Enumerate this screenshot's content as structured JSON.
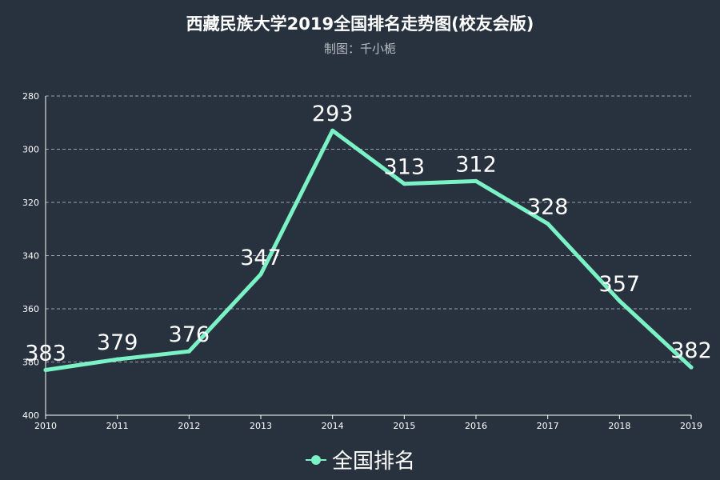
{
  "chart_data": {
    "type": "line",
    "title": "西藏民族大学2019全国排名走势图(校友会版)",
    "subtitle": "制图：千小栀",
    "categories": [
      "2010",
      "2011",
      "2012",
      "2013",
      "2014",
      "2015",
      "2016",
      "2017",
      "2018",
      "2019"
    ],
    "series": [
      {
        "name": "全国排名",
        "values": [
          383,
          379,
          376,
          347,
          293,
          313,
          312,
          328,
          357,
          382
        ]
      }
    ],
    "xlabel": "",
    "ylabel": "",
    "y_axis": {
      "min": 280,
      "max": 400,
      "step": 20,
      "inverse": true
    },
    "grid": {
      "horizontal": true,
      "style": "dashed"
    },
    "legend_position": "bottom-center",
    "data_labels": true
  },
  "colors": {
    "background": "#27323e",
    "series_line": "#7bf2c6",
    "text": "#ffffff",
    "subtitle": "#b9bec5",
    "grid": "#9aa3ad"
  }
}
